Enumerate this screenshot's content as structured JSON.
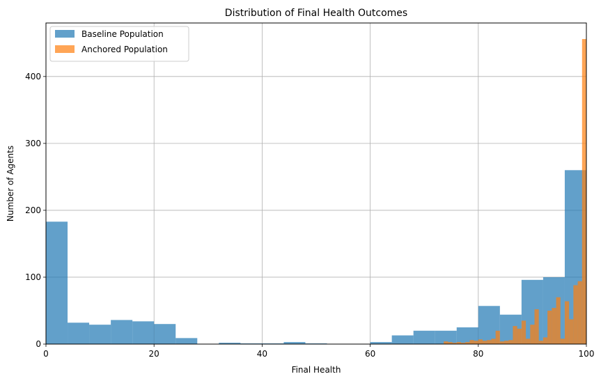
{
  "chart_data": {
    "type": "bar",
    "title": "Distribution of Final Health Outcomes",
    "xlabel": "Final Health",
    "ylabel": "Number of Agents",
    "xlim": [
      0,
      100
    ],
    "ylim": [
      0,
      480
    ],
    "x_ticks": [
      0,
      20,
      40,
      60,
      80,
      100
    ],
    "y_ticks": [
      0,
      100,
      200,
      300,
      400
    ],
    "grid": true,
    "legend_position": "top-left",
    "series": [
      {
        "name": "Baseline Population",
        "color": "#1f77b4",
        "opacity": 0.7,
        "bin_width": 4,
        "bin_starts": [
          0,
          4,
          8,
          12,
          16,
          20,
          24,
          28,
          32,
          36,
          40,
          44,
          48,
          52,
          56,
          60,
          64,
          68,
          72,
          76,
          80,
          84,
          88,
          92,
          96
        ],
        "values": [
          183,
          32,
          29,
          36,
          34,
          30,
          9,
          0,
          2,
          1,
          1,
          3,
          1,
          0,
          0,
          3,
          13,
          20,
          20,
          25,
          57,
          44,
          96,
          100,
          260
        ]
      },
      {
        "name": "Anchored Population",
        "color": "#ff7f0e",
        "opacity": 0.7,
        "bin_width": 0.8,
        "bin_starts": [
          73.6,
          74.4,
          75.2,
          76.0,
          76.8,
          77.6,
          78.4,
          79.2,
          80.0,
          80.8,
          81.6,
          82.4,
          83.2,
          84.0,
          84.8,
          85.6,
          86.4,
          87.2,
          88.0,
          88.8,
          89.6,
          90.4,
          91.2,
          92.0,
          92.8,
          93.6,
          94.4,
          95.2,
          96.0,
          96.8,
          97.6,
          98.4,
          99.2
        ],
        "values": [
          4,
          3,
          2,
          3,
          2,
          3,
          6,
          5,
          7,
          5,
          6,
          8,
          20,
          4,
          5,
          6,
          27,
          23,
          35,
          8,
          29,
          52,
          5,
          10,
          50,
          54,
          70,
          8,
          64,
          37,
          88,
          94,
          456
        ]
      }
    ]
  }
}
